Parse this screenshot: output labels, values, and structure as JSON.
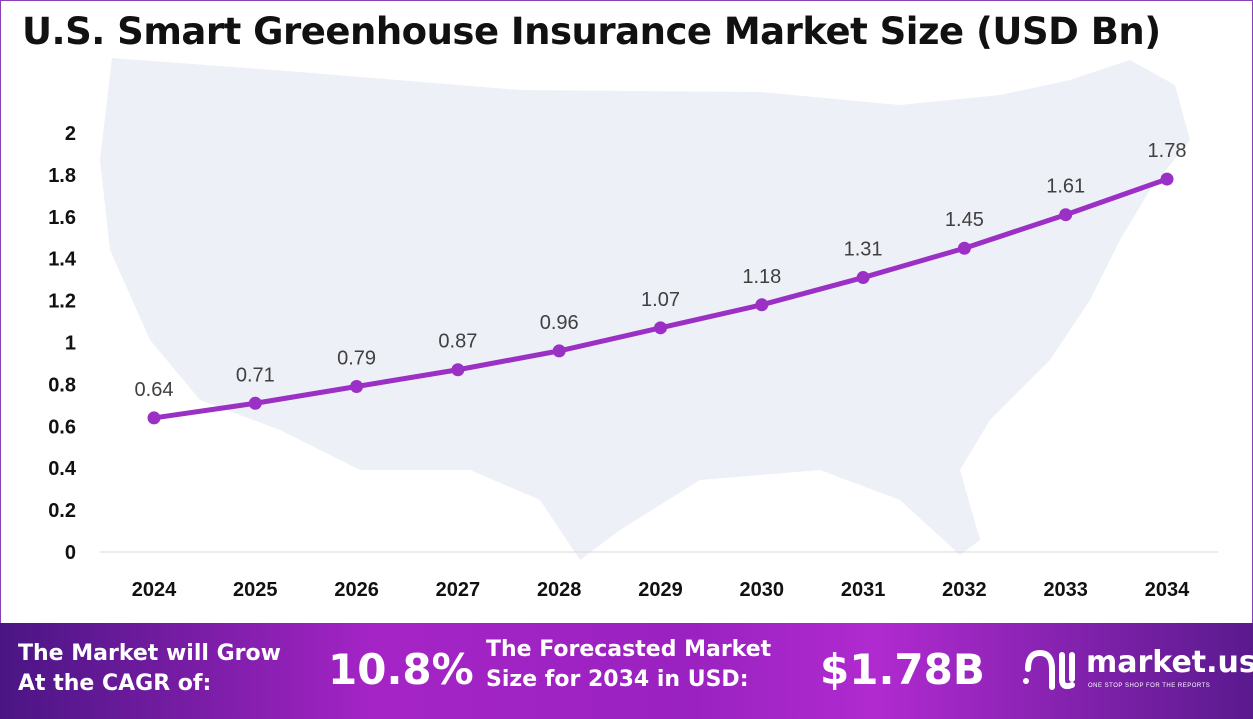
{
  "chart_data": {
    "type": "line",
    "title": "U.S. Smart Greenhouse Insurance Market Size (USD Bn)",
    "categories": [
      "2024",
      "2025",
      "2026",
      "2027",
      "2028",
      "2029",
      "2030",
      "2031",
      "2032",
      "2033",
      "2034"
    ],
    "values": [
      0.64,
      0.71,
      0.79,
      0.87,
      0.96,
      1.07,
      1.18,
      1.31,
      1.45,
      1.61,
      1.78
    ],
    "ylim": [
      0,
      2
    ],
    "yticks": [
      "0",
      "0.2",
      "0.4",
      "0.6",
      "0.8",
      "1",
      "1.2",
      "1.4",
      "1.6",
      "1.8",
      "2"
    ],
    "grid": false,
    "data_labels": true,
    "line_color": "#9b30c4",
    "background": "map of the United States"
  },
  "footer": {
    "cagr_label": [
      "The Market will Grow",
      "At the CAGR of:"
    ],
    "cagr_value": "10.8%",
    "forecast_label": [
      "The Forecasted Market",
      "Size for 2034 in USD:"
    ],
    "forecast_value": "$1.78B",
    "logo_name": "market.us",
    "logo_tagline": "ONE STOP SHOP FOR THE REPORTS"
  }
}
